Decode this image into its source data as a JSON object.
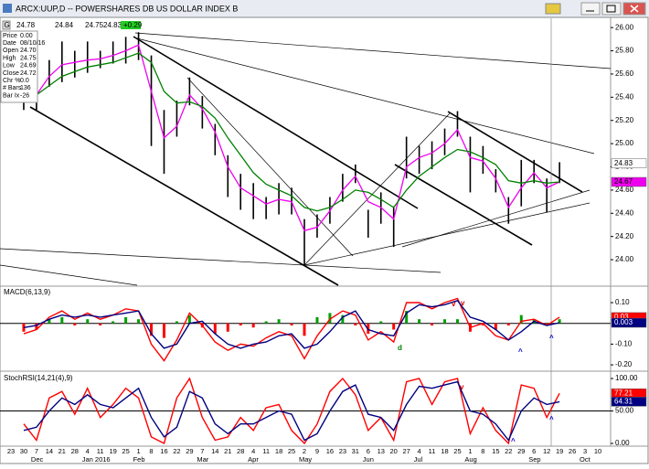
{
  "chart_data": [
    {
      "type": "ohlc",
      "title": "ARCX:UUP,D -- POWERSHARES DB US DOLLAR INDEX B",
      "quote": {
        "open": 24.78,
        "high": 24.84,
        "low": 24.75,
        "close": 24.83,
        "change": {
          "value": 0.29,
          "label": "+0.29"
        }
      },
      "button": "G",
      "ylim": [
        23.78,
        26.08
      ],
      "yticks": [
        {
          "value": 26,
          "label": "26.00"
        },
        {
          "value": 25.8,
          "label": "25.80"
        },
        {
          "value": 25.6,
          "label": "25.60"
        },
        {
          "value": 25.4,
          "label": "25.40"
        },
        {
          "value": 25.2,
          "label": "25.20"
        },
        {
          "value": 25,
          "label": "25.00"
        },
        {
          "value": 24.8,
          "label": "24.80"
        },
        {
          "value": 24.6,
          "label": "24.60"
        },
        {
          "value": 24.4,
          "label": "24.40"
        },
        {
          "value": 24.2,
          "label": "24.20"
        },
        {
          "value": 24,
          "label": "24.00"
        }
      ],
      "color": "#000000",
      "highs": [
        null,
        25.45,
        25.49,
        25.72,
        25.88,
        25.8,
        25.88,
        25.8,
        25.88,
        25.92,
        25.96,
        25.76,
        25.29,
        25.37,
        25.57,
        25.41,
        25.17,
        24.9,
        24.74,
        24.66,
        24.54,
        24.66,
        24.62,
        24.35,
        24.39,
        24.54,
        24.74,
        24.82,
        24.43,
        24.58,
        24.46,
        25.06,
        24.98,
        25.02,
        25.13,
        25.28,
        25.06,
        24.98,
        24.78,
        24.54,
        24.86,
        24.86,
        24.7,
        24.84,
        null,
        null,
        null
      ],
      "lows": [
        null,
        25.29,
        25.29,
        25.49,
        25.53,
        25.57,
        25.61,
        25.65,
        25.69,
        25.69,
        25.72,
        24.98,
        24.74,
        25.06,
        25.33,
        25.13,
        24.9,
        24.54,
        24.43,
        24.35,
        24.35,
        24.39,
        24.39,
        23.95,
        24.19,
        24.31,
        24.5,
        24.66,
        24.19,
        24.31,
        24.11,
        24.7,
        24.74,
        24.78,
        24.9,
        25.06,
        24.58,
        24.74,
        24.58,
        24.31,
        24.46,
        24.66,
        24.41,
        24.66,
        null,
        null,
        null
      ],
      "series": [
        {
          "color": "#ee00ee",
          "last_label": true,
          "label_text": "#000000",
          "values": [
            null,
            25.38,
            25.42,
            25.58,
            25.68,
            25.7,
            25.72,
            25.73,
            25.76,
            25.8,
            25.85,
            25.45,
            25.05,
            25.15,
            25.42,
            25.3,
            25.1,
            24.8,
            24.62,
            24.55,
            24.48,
            24.52,
            24.5,
            24.25,
            24.28,
            24.42,
            24.6,
            24.72,
            24.5,
            24.45,
            24.35,
            24.8,
            24.88,
            24.92,
            25.0,
            25.12,
            24.88,
            24.85,
            24.7,
            24.45,
            24.62,
            24.75,
            24.62,
            24.67,
            null,
            null,
            null
          ]
        },
        {
          "color": "#008000",
          "last_label": false,
          "values": [
            null,
            25.4,
            25.42,
            25.5,
            25.58,
            25.62,
            25.66,
            25.68,
            25.7,
            25.74,
            25.78,
            25.7,
            25.45,
            25.35,
            25.36,
            25.32,
            25.22,
            25.05,
            24.9,
            24.75,
            24.65,
            24.6,
            24.55,
            24.45,
            24.42,
            24.45,
            24.52,
            24.6,
            24.58,
            24.52,
            24.45,
            24.6,
            24.72,
            24.8,
            24.88,
            24.95,
            24.93,
            24.88,
            24.82,
            24.68,
            24.66,
            24.68,
            24.66,
            24.67,
            null,
            null,
            null
          ]
        }
      ],
      "info": [
        [
          "Price",
          "0.00"
        ],
        [
          "Date",
          "08/10/16"
        ],
        [
          "Open",
          "24.70"
        ],
        [
          "High",
          "24.75"
        ],
        [
          "Low",
          "24.69"
        ],
        [
          "Close",
          "24.72"
        ],
        [
          "Chr %",
          "0.0"
        ],
        [
          "# Bars",
          "136"
        ],
        [
          "Bar Ix",
          "-26"
        ]
      ]
    },
    {
      "type": "indicator",
      "title": "MACD(6,13,9)",
      "ylim": [
        -0.226,
        0.175
      ],
      "yticks": [
        {
          "value": 0.1,
          "label": "0.10"
        },
        {
          "value": -0.1,
          "label": "-0.10"
        },
        {
          "value": -0.2,
          "label": "-0.20"
        }
      ],
      "reference_line": 0,
      "annotations": [
        "d",
        "v",
        "v",
        "^",
        "^"
      ],
      "series": [
        {
          "kind": "histogram",
          "color": "#00a000",
          "color_neg": "#ff0000",
          "last_label": false,
          "values": [
            null,
            -0.04,
            -0.03,
            0.02,
            0.03,
            -0.01,
            0.02,
            -0.01,
            0.01,
            0.03,
            0.02,
            -0.06,
            -0.07,
            0.01,
            0.04,
            -0.02,
            -0.05,
            -0.04,
            -0.01,
            -0.02,
            0.01,
            0.02,
            -0.01,
            -0.06,
            0.03,
            0.05,
            0.04,
            -0.01,
            -0.05,
            0.01,
            -0.03,
            0.06,
            0.02,
            -0.01,
            0.02,
            0.02,
            -0.04,
            -0.01,
            -0.03,
            -0.01,
            0.04,
            0.02,
            -0.01,
            0.02,
            null,
            null,
            null
          ]
        },
        {
          "kind": "line",
          "color": "#ff0000",
          "last_label": true,
          "label_text": "#ffffff",
          "values": [
            null,
            -0.05,
            -0.03,
            0.03,
            0.06,
            0.02,
            0.05,
            0.02,
            0.04,
            0.07,
            0.06,
            -0.1,
            -0.18,
            -0.08,
            0.05,
            -0.01,
            -0.09,
            -0.13,
            -0.1,
            -0.11,
            -0.07,
            -0.04,
            -0.06,
            -0.17,
            -0.06,
            0.02,
            0.06,
            0.04,
            -0.08,
            -0.04,
            -0.09,
            0.1,
            0.1,
            0.07,
            0.1,
            0.12,
            -0.02,
            0.0,
            -0.06,
            -0.08,
            0.01,
            0.02,
            -0.01,
            0.03,
            null,
            null,
            null
          ]
        },
        {
          "kind": "line",
          "color": "#000080",
          "last_label": true,
          "label_text": "#ffffff",
          "values": [
            null,
            -0.02,
            -0.01,
            0.02,
            0.04,
            0.03,
            0.04,
            0.03,
            0.04,
            0.05,
            0.06,
            -0.05,
            -0.12,
            -0.1,
            0.0,
            0.01,
            -0.05,
            -0.1,
            -0.12,
            -0.1,
            -0.09,
            -0.06,
            -0.05,
            -0.12,
            -0.1,
            -0.04,
            0.03,
            0.06,
            -0.03,
            -0.05,
            -0.06,
            0.05,
            0.09,
            0.08,
            0.09,
            0.11,
            0.03,
            0.01,
            -0.03,
            -0.08,
            -0.04,
            0.01,
            -0.01,
            0.003,
            null,
            null,
            null
          ]
        }
      ]
    },
    {
      "type": "indicator",
      "title": "StochRSI(14,21(4),9)",
      "ylim": [
        -4.2,
        109.9
      ],
      "yticks": [
        {
          "value": 100,
          "label": "100.00"
        },
        {
          "value": 50,
          "label": "50.00"
        },
        {
          "value": 0,
          "label": "0.00"
        }
      ],
      "reference_line": 50,
      "annotations": [
        "v",
        "^",
        "^"
      ],
      "categories": [
        "23",
        "30",
        "7",
        "14",
        "21",
        "28",
        "4",
        "11",
        "19",
        "25",
        "1",
        "8",
        "16",
        "22",
        "29",
        "7",
        "14",
        "21",
        "28",
        "4",
        "11",
        "18",
        "25",
        "2",
        "9",
        "16",
        "23",
        "31",
        "6",
        "13",
        "20",
        "27",
        "4",
        "11",
        "18",
        "25",
        "1",
        "8",
        "15",
        "22",
        "29",
        "6",
        "12",
        "19",
        "26",
        "3",
        "10"
      ],
      "months": [
        "Dec",
        "Jan 2016",
        "Feb",
        "Mar",
        "Apr",
        "May",
        "Jun",
        "Jul",
        "Aug",
        "Sep",
        "Oct"
      ],
      "series": [
        {
          "kind": "line",
          "color": "#ff0000",
          "last_label": true,
          "label_text": "#ffffff",
          "values": [
            null,
            30,
            5,
            70,
            80,
            45,
            85,
            40,
            60,
            85,
            70,
            10,
            0,
            70,
            100,
            40,
            5,
            10,
            40,
            20,
            55,
            60,
            20,
            0,
            30,
            80,
            100,
            75,
            20,
            40,
            5,
            95,
            100,
            60,
            95,
            100,
            15,
            55,
            20,
            0,
            90,
            85,
            40,
            77.21,
            null,
            null,
            null
          ]
        },
        {
          "kind": "line",
          "color": "#000080",
          "last_label": true,
          "label_text": "#ffffff",
          "values": [
            null,
            20,
            25,
            50,
            70,
            60,
            75,
            60,
            55,
            70,
            85,
            40,
            10,
            25,
            80,
            70,
            30,
            15,
            30,
            30,
            40,
            50,
            45,
            5,
            15,
            50,
            80,
            90,
            45,
            40,
            20,
            60,
            88,
            85,
            90,
            95,
            50,
            45,
            30,
            5,
            50,
            70,
            60,
            64.31,
            null,
            null,
            null
          ]
        }
      ]
    }
  ]
}
